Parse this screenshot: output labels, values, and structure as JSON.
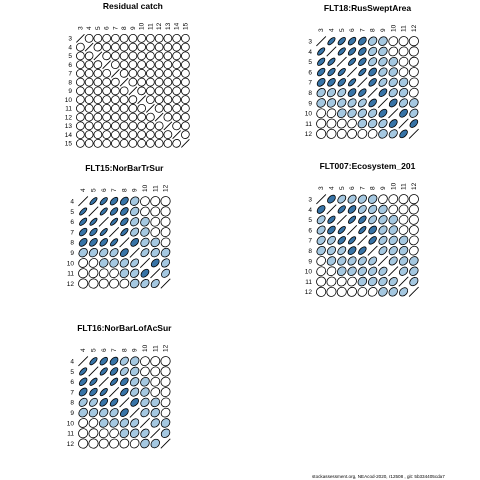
{
  "footer": "stockassessment.org, NEAcod-2020, r12508 , git: 5b334405cda7",
  "colors": {
    "positive": "#3773a6",
    "light": "#a5c8e1",
    "zero": "#ffffff",
    "stroke": "#000000"
  },
  "chart_data": [
    {
      "type": "heatmap",
      "title": "Residual catch",
      "ages": [
        "3",
        "4",
        "5",
        "6",
        "7",
        "8",
        "9",
        "10",
        "11",
        "12",
        "13",
        "14",
        "15"
      ],
      "correlation": [
        [
          1.0,
          0.05,
          0.05,
          0.05,
          0.05,
          0.05,
          0.05,
          0.05,
          0.05,
          0.05,
          0.05,
          0.05,
          0.05
        ],
        [
          0.05,
          1.0,
          0.1,
          0.05,
          0.05,
          0.05,
          0.05,
          0.05,
          0.05,
          0.05,
          0.05,
          0.05,
          0.05
        ],
        [
          0.05,
          0.1,
          1.0,
          0.1,
          0.05,
          0.05,
          0.05,
          0.05,
          0.05,
          0.05,
          0.05,
          0.05,
          0.05
        ],
        [
          0.05,
          0.05,
          0.1,
          1.0,
          0.05,
          0.05,
          0.05,
          0.05,
          0.05,
          0.05,
          0.05,
          0.05,
          0.05
        ],
        [
          0.05,
          0.05,
          0.05,
          0.05,
          1.0,
          0.1,
          0.05,
          0.05,
          0.05,
          0.05,
          0.05,
          0.05,
          0.05
        ],
        [
          0.05,
          0.05,
          0.05,
          0.05,
          0.1,
          1.0,
          0.05,
          0.05,
          0.05,
          0.05,
          0.05,
          0.05,
          0.05
        ],
        [
          0.05,
          0.05,
          0.05,
          0.05,
          0.05,
          0.05,
          1.0,
          0.1,
          0.05,
          0.05,
          0.05,
          0.05,
          0.05
        ],
        [
          0.05,
          0.05,
          0.05,
          0.05,
          0.05,
          0.05,
          0.1,
          1.0,
          0.05,
          0.05,
          0.05,
          0.05,
          0.05
        ],
        [
          0.05,
          0.05,
          0.05,
          0.05,
          0.05,
          0.05,
          0.05,
          0.05,
          1.0,
          0.05,
          0.05,
          0.05,
          0.05
        ],
        [
          0.05,
          0.05,
          0.05,
          0.05,
          0.05,
          0.05,
          0.05,
          0.05,
          0.05,
          1.0,
          0.05,
          0.05,
          0.05
        ],
        [
          0.05,
          0.05,
          0.05,
          0.05,
          0.05,
          0.05,
          0.05,
          0.05,
          0.05,
          0.05,
          1.0,
          0.05,
          0.05
        ],
        [
          0.05,
          0.05,
          0.05,
          0.05,
          0.05,
          0.05,
          0.05,
          0.05,
          0.05,
          0.05,
          0.05,
          1.0,
          0.1
        ],
        [
          0.05,
          0.05,
          0.05,
          0.05,
          0.05,
          0.05,
          0.05,
          0.05,
          0.05,
          0.05,
          0.05,
          0.1,
          1.0
        ]
      ]
    },
    {
      "type": "heatmap",
      "title": "FLT18:RusSweptArea",
      "ages": [
        "3",
        "4",
        "5",
        "6",
        "7",
        "8",
        "9",
        "10",
        "11",
        "12"
      ],
      "correlation": [
        [
          1.0,
          0.8,
          0.75,
          0.7,
          0.6,
          0.4,
          0.3,
          0.2,
          0.1,
          0.05
        ],
        [
          0.8,
          1.0,
          0.8,
          0.75,
          0.65,
          0.45,
          0.35,
          0.25,
          0.15,
          0.1
        ],
        [
          0.75,
          0.8,
          1.0,
          0.8,
          0.7,
          0.5,
          0.4,
          0.3,
          0.2,
          0.15
        ],
        [
          0.7,
          0.75,
          0.8,
          1.0,
          0.8,
          0.6,
          0.45,
          0.35,
          0.25,
          0.15
        ],
        [
          0.6,
          0.65,
          0.7,
          0.8,
          1.0,
          0.7,
          0.55,
          0.4,
          0.3,
          0.2
        ],
        [
          0.4,
          0.45,
          0.5,
          0.6,
          0.7,
          1.0,
          0.65,
          0.45,
          0.35,
          0.25
        ],
        [
          0.3,
          0.35,
          0.4,
          0.45,
          0.55,
          0.65,
          1.0,
          0.6,
          0.45,
          0.3
        ],
        [
          0.2,
          0.25,
          0.3,
          0.35,
          0.4,
          0.45,
          0.6,
          1.0,
          0.6,
          0.45
        ],
        [
          0.1,
          0.15,
          0.2,
          0.25,
          0.3,
          0.35,
          0.45,
          0.6,
          1.0,
          0.65
        ],
        [
          0.05,
          0.1,
          0.15,
          0.15,
          0.2,
          0.25,
          0.3,
          0.45,
          0.65,
          1.0
        ]
      ]
    },
    {
      "type": "heatmap",
      "title": "FLT15:NorBarTrSur",
      "ages": [
        "4",
        "5",
        "6",
        "7",
        "8",
        "9",
        "10",
        "11",
        "12"
      ],
      "correlation": [
        [
          1.0,
          0.85,
          0.8,
          0.7,
          0.6,
          0.35,
          0.2,
          0.1,
          0.05
        ],
        [
          0.85,
          1.0,
          0.85,
          0.75,
          0.65,
          0.4,
          0.25,
          0.15,
          0.05
        ],
        [
          0.8,
          0.85,
          1.0,
          0.85,
          0.7,
          0.45,
          0.3,
          0.2,
          0.1
        ],
        [
          0.7,
          0.75,
          0.85,
          1.0,
          0.8,
          0.5,
          0.35,
          0.25,
          0.15
        ],
        [
          0.6,
          0.65,
          0.7,
          0.8,
          1.0,
          0.6,
          0.4,
          0.3,
          0.2
        ],
        [
          0.35,
          0.4,
          0.45,
          0.5,
          0.6,
          1.0,
          0.55,
          0.4,
          0.3
        ],
        [
          0.2,
          0.25,
          0.3,
          0.35,
          0.4,
          0.55,
          1.0,
          0.6,
          0.45
        ],
        [
          0.1,
          0.15,
          0.2,
          0.25,
          0.3,
          0.4,
          0.6,
          1.0,
          0.5
        ],
        [
          0.05,
          0.05,
          0.1,
          0.15,
          0.2,
          0.3,
          0.45,
          0.5,
          1.0
        ]
      ]
    },
    {
      "type": "heatmap",
      "title": "FLT007:Ecosystem_201",
      "ages": [
        "3",
        "4",
        "5",
        "6",
        "7",
        "8",
        "9",
        "10",
        "11",
        "12"
      ],
      "correlation": [
        [
          1.0,
          0.6,
          0.55,
          0.5,
          0.45,
          0.35,
          0.25,
          0.2,
          0.1,
          0.05
        ],
        [
          0.6,
          1.0,
          0.75,
          0.65,
          0.55,
          0.45,
          0.35,
          0.25,
          0.15,
          0.1
        ],
        [
          0.55,
          0.75,
          1.0,
          0.8,
          0.7,
          0.55,
          0.4,
          0.3,
          0.2,
          0.1
        ],
        [
          0.5,
          0.65,
          0.8,
          1.0,
          0.8,
          0.6,
          0.45,
          0.35,
          0.25,
          0.15
        ],
        [
          0.45,
          0.55,
          0.7,
          0.8,
          1.0,
          0.7,
          0.5,
          0.4,
          0.3,
          0.2
        ],
        [
          0.35,
          0.45,
          0.55,
          0.6,
          0.7,
          1.0,
          0.55,
          0.45,
          0.35,
          0.25
        ],
        [
          0.25,
          0.35,
          0.4,
          0.45,
          0.5,
          0.55,
          1.0,
          0.5,
          0.4,
          0.3
        ],
        [
          0.2,
          0.25,
          0.3,
          0.35,
          0.4,
          0.45,
          0.5,
          1.0,
          0.45,
          0.35
        ],
        [
          0.1,
          0.15,
          0.2,
          0.25,
          0.3,
          0.35,
          0.4,
          0.45,
          1.0,
          0.45
        ],
        [
          0.05,
          0.1,
          0.1,
          0.15,
          0.2,
          0.25,
          0.3,
          0.35,
          0.45,
          1.0
        ]
      ]
    },
    {
      "type": "heatmap",
      "title": "FLT16:NorBarLofAcSur",
      "ages": [
        "4",
        "5",
        "6",
        "7",
        "8",
        "9",
        "10",
        "11",
        "12"
      ],
      "correlation": [
        [
          1.0,
          0.8,
          0.7,
          0.6,
          0.5,
          0.3,
          0.2,
          0.1,
          0.05
        ],
        [
          0.8,
          1.0,
          0.8,
          0.7,
          0.55,
          0.35,
          0.25,
          0.15,
          0.05
        ],
        [
          0.7,
          0.8,
          1.0,
          0.8,
          0.65,
          0.4,
          0.3,
          0.2,
          0.1
        ],
        [
          0.6,
          0.7,
          0.8,
          1.0,
          0.7,
          0.45,
          0.35,
          0.25,
          0.15
        ],
        [
          0.5,
          0.55,
          0.65,
          0.7,
          1.0,
          0.6,
          0.4,
          0.3,
          0.2
        ],
        [
          0.3,
          0.35,
          0.4,
          0.45,
          0.6,
          1.0,
          0.45,
          0.35,
          0.25
        ],
        [
          0.2,
          0.25,
          0.3,
          0.35,
          0.4,
          0.45,
          1.0,
          0.4,
          0.3
        ],
        [
          0.1,
          0.15,
          0.2,
          0.25,
          0.3,
          0.35,
          0.4,
          1.0,
          0.35
        ],
        [
          0.05,
          0.05,
          0.1,
          0.15,
          0.2,
          0.25,
          0.3,
          0.35,
          1.0
        ]
      ]
    }
  ]
}
